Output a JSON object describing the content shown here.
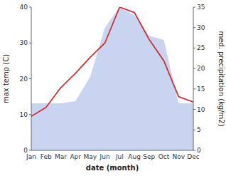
{
  "chart_data": {
    "type": "line",
    "categories": [
      "Jan",
      "Feb",
      "Mar",
      "Apr",
      "May",
      "Jun",
      "Jul",
      "Aug",
      "Sep",
      "Oct",
      "Nov",
      "Dec"
    ],
    "xlabel": "date (month)",
    "ylabel": "max temp (C)",
    "y2label": "med. precipitation (kg/m2)",
    "series": [
      {
        "type": "area",
        "axis": "y2",
        "color": "#c8d4f0",
        "values": [
          11.5,
          11.5,
          11.5,
          12.0,
          18.0,
          30.0,
          35.0,
          33.0,
          28.0,
          27.0,
          11.5,
          11.5
        ]
      },
      {
        "type": "line",
        "color": "#cc3333",
        "values": [
          9.5,
          12.0,
          17.5,
          21.5,
          26.0,
          30.0,
          40.0,
          38.5,
          31.0,
          25.0,
          15.0,
          13.5
        ]
      }
    ],
    "ylim": [
      0,
      40
    ],
    "yticks": [
      0,
      10,
      20,
      30,
      40
    ],
    "y2lim": [
      0,
      35
    ],
    "y2ticks": [
      0,
      5,
      10,
      15,
      20,
      25,
      30,
      35
    ],
    "grid": false
  }
}
